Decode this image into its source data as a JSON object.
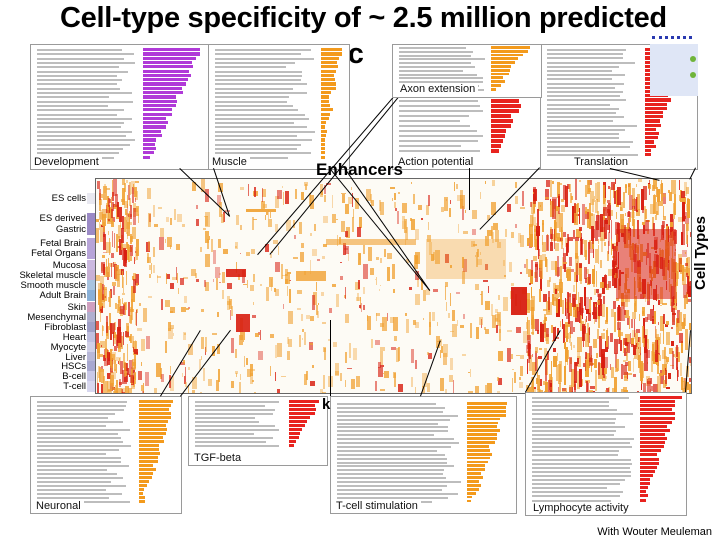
{
  "title_line1": "Cell-type specificity of ~ 2.5 million predicted",
  "title_line2": "nc",
  "axis_enhancers": "Enhancers",
  "axis_celltypes": "Cell Types",
  "top_panels": [
    {
      "label": "Development"
    },
    {
      "label": "Muscle"
    },
    {
      "label": "Axon extension"
    },
    {
      "label": "Action potential"
    },
    {
      "label": "Translation"
    }
  ],
  "bottom_panels": [
    {
      "label": "Neuronal"
    },
    {
      "label": "TGF-beta"
    },
    {
      "label": "T-cell stimulation"
    },
    {
      "label": "Lymphocyte activity"
    }
  ],
  "cell_types": [
    "ES cells",
    "ES derived",
    "Gastric",
    "Fetal Brain",
    "Fetal Organs",
    "Mucosa",
    "Skeletal muscle",
    "Smooth muscle",
    "Adult Brain",
    "Skin",
    "Mesenchymal",
    "Fibroblast",
    "Heart",
    "Myocyte",
    "Liver",
    "HSCs",
    "B-cell",
    "T-cell"
  ],
  "stray_letter": "k",
  "credit": "With Wouter Meuleman",
  "colors": {
    "purple": "#b03ad8",
    "orange": "#f39a1c",
    "red": "#e8231f",
    "heat_orange": "#f0a030",
    "heat_red": "#d81e10"
  }
}
